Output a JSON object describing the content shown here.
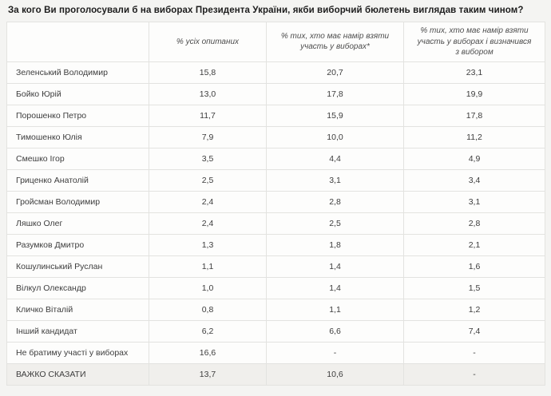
{
  "title": "За кого Ви проголосували б на виборах Президента України, якби виборчий бюлетень виглядав таким чином?",
  "chart_data": {
    "type": "table",
    "columns": [
      "",
      "% усіх опитаних",
      "% тих, хто має намір взяти участь у виборах*",
      "% тих, хто має намір взяти участь у виборах і визначився з вибором"
    ],
    "rows": [
      {
        "name": "Зеленський Володимир",
        "values": [
          "15,8",
          "20,7",
          "23,1"
        ]
      },
      {
        "name": "Бойко Юрій",
        "values": [
          "13,0",
          "17,8",
          "19,9"
        ]
      },
      {
        "name": "Порошенко Петро",
        "values": [
          "11,7",
          "15,9",
          "17,8"
        ]
      },
      {
        "name": "Тимошенко Юлія",
        "values": [
          "7,9",
          "10,0",
          "11,2"
        ]
      },
      {
        "name": "Смешко Ігор",
        "values": [
          "3,5",
          "4,4",
          "4,9"
        ]
      },
      {
        "name": "Гриценко Анатолій",
        "values": [
          "2,5",
          "3,1",
          "3,4"
        ]
      },
      {
        "name": "Гройсман Володимир",
        "values": [
          "2,4",
          "2,8",
          "3,1"
        ]
      },
      {
        "name": "Ляшко Олег",
        "values": [
          "2,4",
          "2,5",
          "2,8"
        ]
      },
      {
        "name": "Разумков Дмитро",
        "values": [
          "1,3",
          "1,8",
          "2,1"
        ]
      },
      {
        "name": "Кошулинський Руслан",
        "values": [
          "1,1",
          "1,4",
          "1,6"
        ]
      },
      {
        "name": "Вілкул Олександр",
        "values": [
          "1,0",
          "1,4",
          "1,5"
        ]
      },
      {
        "name": "Кличко Віталій",
        "values": [
          "0,8",
          "1,1",
          "1,2"
        ]
      },
      {
        "name": "Інший кандидат",
        "values": [
          "6,2",
          "6,6",
          "7,4"
        ]
      },
      {
        "name": "Не братиму участі у виборах",
        "values": [
          "16,6",
          "-",
          "-"
        ]
      },
      {
        "name": "ВАЖКО СКАЗАТИ",
        "values": [
          "13,7",
          "10,6",
          "-"
        ]
      }
    ],
    "colors": {
      "page_background": "#f4f4f2",
      "cell_background": "#fdfdfc",
      "last_row_background": "#f0efec",
      "border": "#e3e3e0",
      "text": "#3d3d3d"
    }
  }
}
